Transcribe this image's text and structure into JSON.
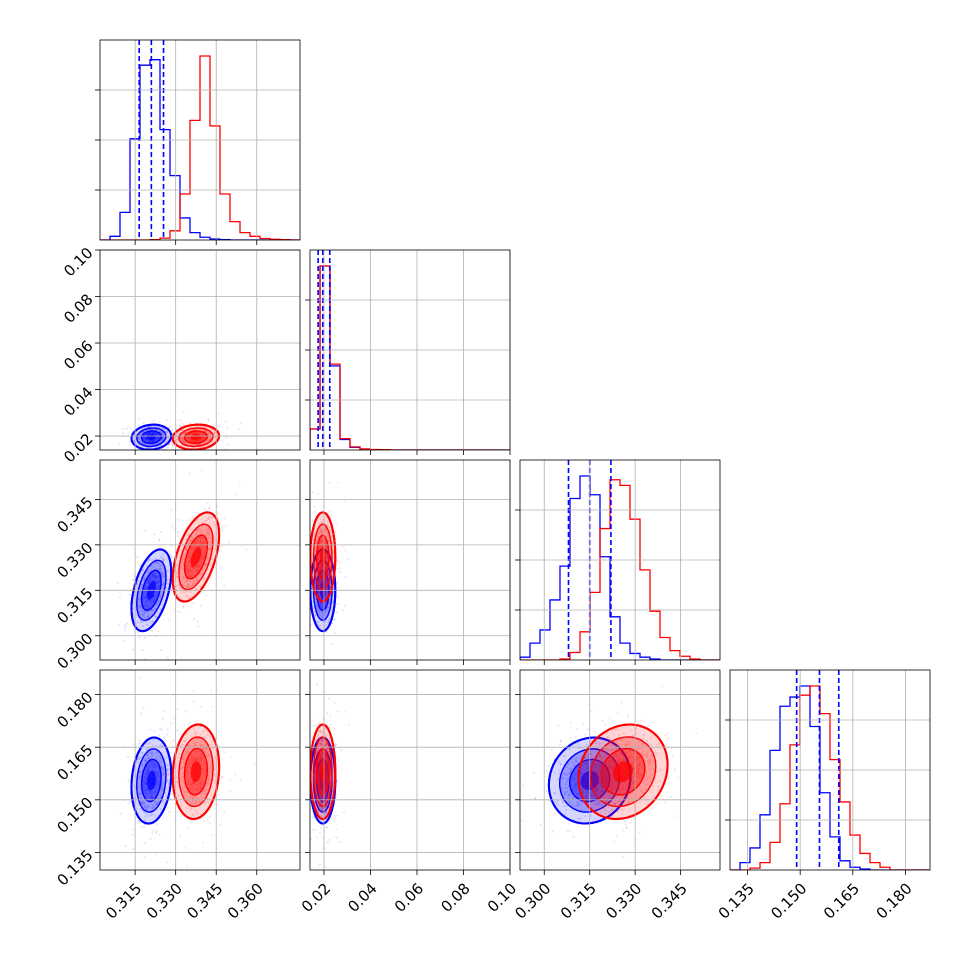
{
  "chart_data": {
    "type": "scatter",
    "kind": "corner-plot",
    "colors": {
      "a": "#0000ff",
      "b": "#ff0000",
      "quantile": "#0000ff"
    },
    "grid": true,
    "params": [
      {
        "range": [
          0.302,
          0.376
        ],
        "ticks": [
          "0.315",
          "0.330",
          "0.345",
          "0.360"
        ],
        "tick_values": [
          0.315,
          0.33,
          0.345,
          0.36
        ]
      },
      {
        "range": [
          0.014,
          0.1
        ],
        "ticks": [
          "0.02",
          "0.04",
          "0.06",
          "0.08",
          "0.10"
        ],
        "tick_values": [
          0.02,
          0.04,
          0.06,
          0.08,
          0.1
        ]
      },
      {
        "range": [
          0.292,
          0.358
        ],
        "ticks": [
          "0.300",
          "0.315",
          "0.330",
          "0.345"
        ],
        "tick_values": [
          0.3,
          0.315,
          0.33,
          0.345
        ]
      },
      {
        "range": [
          0.13,
          0.187
        ],
        "ticks": [
          "0.135",
          "0.150",
          "0.165",
          "0.180"
        ],
        "tick_values": [
          0.135,
          0.15,
          0.165,
          0.18
        ]
      }
    ],
    "series": [
      {
        "mean": [
          0.321,
          0.0195,
          0.315,
          0.1555
        ],
        "sd": [
          0.003,
          0.0022,
          0.0055,
          0.005
        ],
        "corr": {
          "0-1": 0.1,
          "0-2": 0.45,
          "0-3": 0.15,
          "1-2": 0.0,
          "1-3": 0.0,
          "2-3": 0.1
        },
        "quantiles": [
          [
            0.3165,
            0.321,
            0.3255
          ],
          [
            0.0175,
            0.0195,
            0.0225
          ],
          [
            0.308,
            0.315,
            0.322
          ],
          [
            0.149,
            0.1555,
            0.161
          ]
        ],
        "hists": [
          [
            0.0,
            0.2,
            1.5,
            5.5,
            9.5,
            9.8,
            6.0,
            3.5,
            1.2,
            0.4,
            0.15,
            0.05,
            0.02,
            0,
            0,
            0,
            0,
            0,
            0,
            0
          ],
          [
            1.2,
            10.5,
            4.8,
            0.6,
            0.15,
            0.05,
            0.02,
            0,
            0,
            0,
            0,
            0,
            0,
            0,
            0,
            0,
            0,
            0,
            0,
            0
          ],
          [
            0.15,
            0.9,
            1.6,
            3.2,
            5.0,
            8.6,
            9.8,
            8.8,
            5.5,
            2.3,
            0.9,
            0.35,
            0.15,
            0.05,
            0,
            0,
            0,
            0,
            0,
            0
          ],
          [
            0,
            0.4,
            1.2,
            3.0,
            6.5,
            8.9,
            9.4,
            10.0,
            7.8,
            4.2,
            1.8,
            0.5,
            0.15,
            0.05,
            0,
            0,
            0,
            0,
            0,
            0
          ]
        ]
      },
      {
        "mean": [
          0.3375,
          0.0195,
          0.326,
          0.158
        ],
        "sd": [
          0.0035,
          0.0022,
          0.006,
          0.0055
        ],
        "corr": {
          "0-1": 0.1,
          "0-2": 0.5,
          "0-3": 0.1,
          "1-2": 0.0,
          "1-3": 0.0,
          "2-3": 0.15
        },
        "hists": [
          [
            0,
            0,
            0,
            0,
            0,
            0.02,
            0.1,
            0.5,
            2.5,
            6.5,
            10.0,
            6.2,
            2.5,
            1.0,
            0.4,
            0.2,
            0.08,
            0.04,
            0.02,
            0.0
          ],
          [
            1.2,
            10.5,
            4.9,
            0.65,
            0.18,
            0.06,
            0.03,
            0.02,
            0,
            0,
            0,
            0,
            0,
            0,
            0,
            0,
            0,
            0,
            0,
            0
          ],
          [
            0,
            0,
            0,
            0,
            0.05,
            0.4,
            1.5,
            3.6,
            7.0,
            9.6,
            9.3,
            7.5,
            4.8,
            2.6,
            1.2,
            0.5,
            0.2,
            0.05,
            0,
            0
          ],
          [
            0,
            0,
            0.1,
            0.4,
            1.5,
            3.6,
            6.8,
            9.5,
            10.0,
            8.5,
            6.0,
            3.7,
            1.9,
            0.9,
            0.4,
            0.15,
            0,
            0,
            0,
            0
          ]
        ]
      }
    ]
  }
}
